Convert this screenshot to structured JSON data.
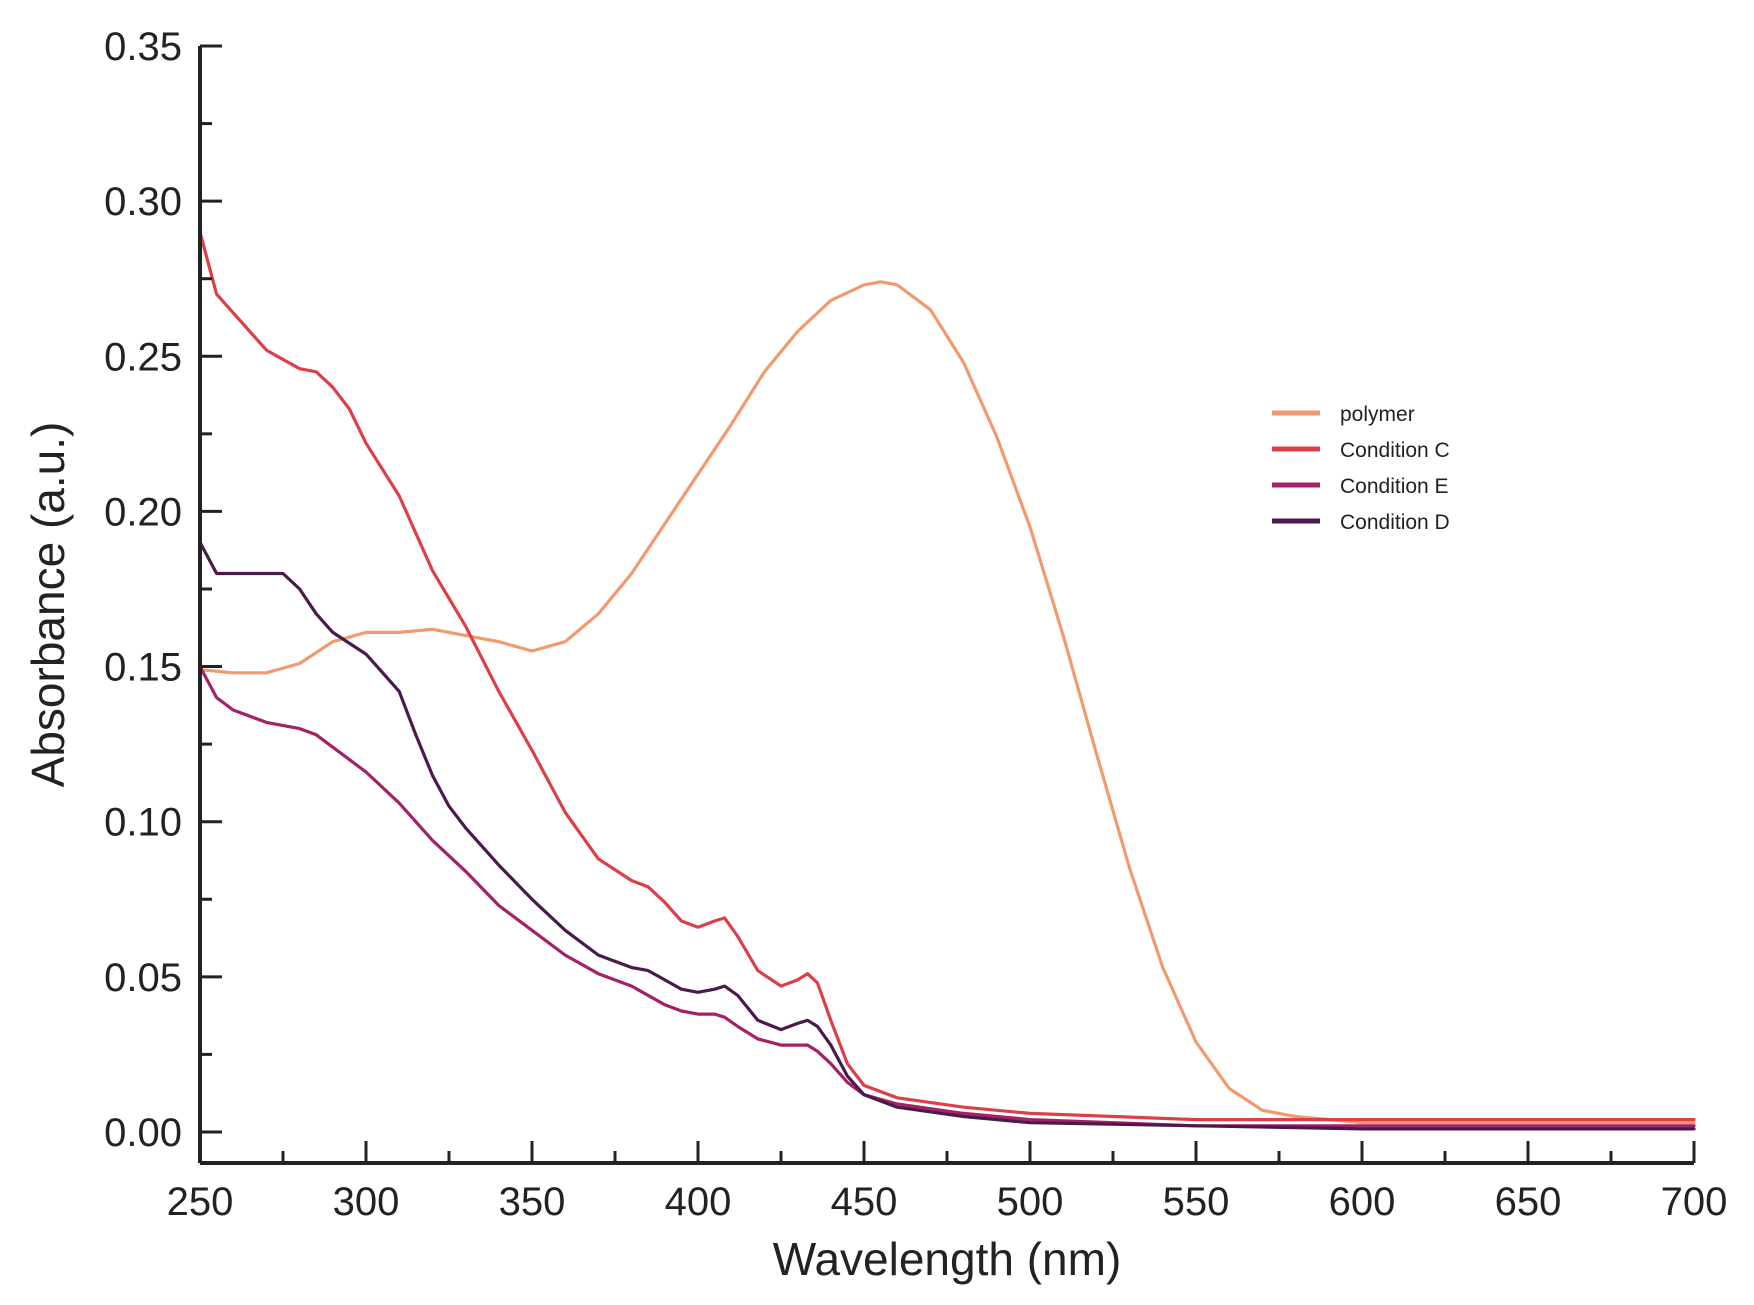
{
  "chart_data": {
    "type": "line",
    "title": "",
    "xlabel": "Wavelength (nm)",
    "ylabel": "Absorbance (a.u.)",
    "xlim": [
      250,
      700
    ],
    "ylim": [
      -0.01,
      0.35
    ],
    "x_ticks": [
      250,
      300,
      350,
      400,
      450,
      500,
      550,
      600,
      650,
      700
    ],
    "x_tick_labels": [
      "250",
      "300",
      "350",
      "400",
      "450",
      "500",
      "550",
      "600",
      "650",
      "700"
    ],
    "x_minor_step": 25,
    "y_ticks": [
      0.0,
      0.05,
      0.1,
      0.15,
      0.2,
      0.25,
      0.3,
      0.35
    ],
    "y_tick_labels": [
      "0.00",
      "0.05",
      "0.10",
      "0.15",
      "0.20",
      "0.25",
      "0.30",
      "0.35"
    ],
    "y_minor_step": 0.025,
    "grid": false,
    "legend_position": "right",
    "series": [
      {
        "name": "polymer",
        "color": "#F09A6E",
        "x": [
          250,
          260,
          270,
          280,
          290,
          300,
          310,
          320,
          330,
          340,
          350,
          360,
          370,
          380,
          390,
          400,
          410,
          420,
          430,
          440,
          450,
          455,
          460,
          470,
          480,
          490,
          500,
          510,
          520,
          530,
          540,
          550,
          560,
          570,
          580,
          590,
          600,
          620,
          650,
          700
        ],
        "y": [
          0.149,
          0.148,
          0.148,
          0.151,
          0.158,
          0.161,
          0.161,
          0.162,
          0.16,
          0.158,
          0.155,
          0.158,
          0.167,
          0.18,
          0.196,
          0.212,
          0.228,
          0.245,
          0.258,
          0.268,
          0.273,
          0.274,
          0.273,
          0.265,
          0.248,
          0.224,
          0.195,
          0.16,
          0.122,
          0.085,
          0.053,
          0.029,
          0.014,
          0.007,
          0.005,
          0.004,
          0.003,
          0.003,
          0.003,
          0.003
        ]
      },
      {
        "name": "Condition C",
        "color": "#DC4047",
        "x": [
          250,
          255,
          260,
          270,
          280,
          285,
          290,
          295,
          300,
          310,
          320,
          330,
          340,
          350,
          360,
          370,
          380,
          385,
          390,
          395,
          400,
          405,
          408,
          412,
          418,
          425,
          430,
          433,
          436,
          440,
          445,
          450,
          460,
          480,
          500,
          550,
          600,
          700
        ],
        "y": [
          0.29,
          0.27,
          0.264,
          0.252,
          0.246,
          0.245,
          0.24,
          0.233,
          0.222,
          0.205,
          0.181,
          0.163,
          0.142,
          0.123,
          0.103,
          0.088,
          0.081,
          0.079,
          0.074,
          0.068,
          0.066,
          0.068,
          0.069,
          0.063,
          0.052,
          0.047,
          0.049,
          0.051,
          0.048,
          0.036,
          0.022,
          0.015,
          0.011,
          0.008,
          0.006,
          0.004,
          0.004,
          0.004
        ]
      },
      {
        "name": "Condition E",
        "color": "#A62066",
        "x": [
          250,
          255,
          260,
          270,
          280,
          285,
          290,
          300,
          310,
          320,
          330,
          340,
          350,
          360,
          370,
          380,
          390,
          395,
          400,
          405,
          408,
          412,
          418,
          425,
          430,
          433,
          436,
          440,
          445,
          450,
          460,
          480,
          500,
          550,
          600,
          700
        ],
        "y": [
          0.15,
          0.14,
          0.136,
          0.132,
          0.13,
          0.128,
          0.124,
          0.116,
          0.106,
          0.094,
          0.084,
          0.073,
          0.065,
          0.057,
          0.051,
          0.047,
          0.041,
          0.039,
          0.038,
          0.038,
          0.037,
          0.034,
          0.03,
          0.028,
          0.028,
          0.028,
          0.026,
          0.022,
          0.016,
          0.012,
          0.009,
          0.006,
          0.004,
          0.002,
          0.002,
          0.002
        ]
      },
      {
        "name": "Condition D",
        "color": "#4A1A4C",
        "x": [
          250,
          255,
          260,
          265,
          270,
          275,
          280,
          285,
          290,
          300,
          310,
          315,
          320,
          325,
          330,
          340,
          350,
          360,
          370,
          380,
          385,
          390,
          395,
          400,
          405,
          408,
          412,
          418,
          425,
          430,
          433,
          436,
          440,
          445,
          450,
          460,
          480,
          500,
          550,
          600,
          700
        ],
        "y": [
          0.19,
          0.18,
          0.18,
          0.18,
          0.18,
          0.18,
          0.175,
          0.167,
          0.161,
          0.154,
          0.142,
          0.128,
          0.115,
          0.105,
          0.098,
          0.086,
          0.075,
          0.065,
          0.057,
          0.053,
          0.052,
          0.049,
          0.046,
          0.045,
          0.046,
          0.047,
          0.044,
          0.036,
          0.033,
          0.035,
          0.036,
          0.034,
          0.028,
          0.018,
          0.012,
          0.008,
          0.005,
          0.003,
          0.002,
          0.001,
          0.001
        ]
      }
    ]
  }
}
